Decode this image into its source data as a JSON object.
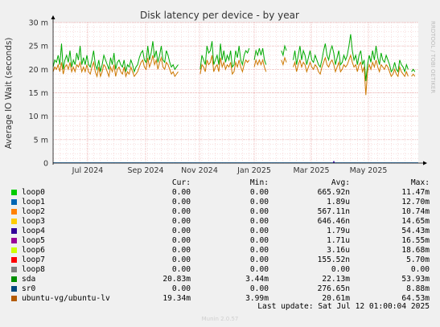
{
  "chart_data": {
    "type": "line",
    "title": "Disk latency per device - by year",
    "ylabel": "Average IO Wait (seconds)",
    "side_label": "RRDTOOL / TOBI OETIKER",
    "ylim": [
      0,
      30
    ],
    "y_ticks": [
      "0",
      "5 m",
      "10 m",
      "15 m",
      "20 m",
      "25 m",
      "30 m"
    ],
    "x_ticks": [
      "Jul 2024",
      "Sep 2024",
      "Nov 2024",
      "Jan 2025",
      "Mar 2025",
      "May 2025"
    ],
    "series": [
      {
        "name": "sda",
        "color": "#00aa00",
        "segments": [
          {
            "x": [
              0,
              0.05,
              0.1,
              0.15,
              0.2,
              0.25,
              0.3,
              0.35,
              0.4,
              0.45,
              0.5,
              0.55,
              0.6,
              0.65,
              0.7,
              0.75,
              0.8,
              0.85,
              0.9,
              0.95,
              1.0
            ],
            "y": [
              20.5,
              22,
              21.5,
              23,
              21,
              25.5,
              20,
              22,
              23,
              21.5,
              24,
              20.5,
              22,
              21,
              23.5,
              22,
              25,
              21,
              22.5,
              21,
              23
            ]
          },
          {
            "x": [
              1.0,
              1.05,
              1.1,
              1.15,
              1.2,
              1.25,
              1.3,
              1.35,
              1.4,
              1.45,
              1.5,
              1.55,
              1.6,
              1.65,
              1.7,
              1.75,
              1.8,
              1.85,
              1.9,
              1.95,
              2.0,
              2.05,
              2.1,
              2.15,
              2.2,
              2.25,
              2.3,
              2.35,
              2.4,
              2.45,
              2.5,
              2.55,
              2.6,
              2.65,
              2.7,
              2.75,
              2.8,
              2.85,
              2.9,
              2.95,
              3.0,
              3.05,
              3.1,
              3.15,
              3.2,
              3.25,
              3.3,
              3.35,
              3.4,
              3.45,
              3.5,
              3.55,
              3.6,
              3.65,
              3.7
            ],
            "y": [
              23,
              21,
              20.5,
              22,
              24,
              21,
              20,
              22,
              19.5,
              21,
              23,
              22,
              21,
              20,
              22.5,
              21,
              23.5,
              20,
              21.5,
              22,
              21,
              20.5,
              22,
              19.5,
              21,
              20.5,
              22,
              21,
              19.5,
              20.5,
              21,
              22.5,
              23.5,
              24,
              22,
              21.5,
              25,
              22,
              23.5,
              26,
              22.5,
              24,
              21.5,
              23,
              25,
              22,
              21.5,
              24,
              23,
              21.5,
              20.5,
              21,
              20,
              20.5,
              21
            ]
          },
          {
            "x": [
              4.35,
              4.4,
              4.45,
              4.5,
              4.55,
              4.6,
              4.65,
              4.7,
              4.75,
              4.8,
              4.85,
              4.9,
              4.95,
              5.0,
              5.05,
              5.1,
              5.15,
              5.2,
              5.25,
              5.3,
              5.35,
              5.4,
              5.45,
              5.5,
              5.55,
              5.6,
              5.65,
              5.7,
              5.75,
              5.8
            ],
            "y": [
              20,
              23,
              22,
              21,
              25,
              23.5,
              24,
              26,
              21,
              22,
              23,
              21,
              25.5,
              22,
              24,
              21.5,
              23,
              22,
              24,
              20.5,
              21,
              24,
              22.5,
              25,
              22,
              21,
              23,
              24,
              23.5,
              24.5
            ]
          },
          {
            "x": [
              5.95,
              6.0,
              6.05,
              6.1,
              6.15,
              6.2,
              6.25,
              6.3
            ],
            "y": [
              22,
              24,
              23,
              24.5,
              23,
              24.5,
              22,
              21
            ]
          },
          {
            "x": [
              6.75,
              6.8,
              6.85,
              6.9
            ],
            "y": [
              24,
              23,
              25,
              24
            ]
          },
          {
            "x": [
              7.1,
              7.15,
              7.2,
              7.25,
              7.3,
              7.35,
              7.4,
              7.45,
              7.5,
              7.55,
              7.6,
              7.65,
              7.7,
              7.75,
              7.8,
              7.85,
              7.9,
              7.95,
              8.0,
              8.05,
              8.1,
              8.15,
              8.2,
              8.25,
              8.3,
              8.35,
              8.4,
              8.45,
              8.5,
              8.55,
              8.6,
              8.65,
              8.7,
              8.75,
              8.8,
              8.85,
              8.9,
              8.95,
              9.0,
              9.05,
              9.1,
              9.15,
              9.2,
              9.25,
              9.3,
              9.35,
              9.4,
              9.45,
              9.5,
              9.55,
              9.6,
              9.65,
              9.7,
              9.75,
              9.8,
              9.85,
              9.9,
              9.95,
              10.0,
              10.05,
              10.1,
              10.15,
              10.2,
              10.25,
              10.3,
              10.35,
              10.4,
              10.45,
              10.5
            ],
            "y": [
              22,
              24,
              21,
              23,
              25,
              22,
              24,
              23,
              21,
              22.5,
              24,
              22,
              21.5,
              23,
              22,
              21,
              20.5,
              22,
              24,
              25.5,
              23,
              22,
              24,
              25,
              23.5,
              21,
              22.5,
              24,
              21,
              21.5,
              23,
              22,
              23,
              25,
              27.5,
              24,
              22,
              23,
              21,
              23,
              24,
              21,
              22,
              17.5,
              21,
              23,
              21.5,
              24,
              22,
              25,
              22.5,
              21,
              23.5,
              22,
              21.5,
              23,
              22,
              21,
              19.5,
              20,
              21.5,
              20,
              19.5,
              22,
              21,
              20.5,
              19.5,
              21,
              20
            ]
          },
          {
            "x": [
              10.6,
              10.65,
              10.7
            ],
            "y": [
              19.5,
              20,
              19.5
            ]
          }
        ]
      },
      {
        "name": "ubuntu-vg/ubuntu-lv",
        "color": "#cc7700",
        "segments": [
          {
            "x": [
              0,
              0.05,
              0.1,
              0.15,
              0.2,
              0.25,
              0.3,
              0.35,
              0.4,
              0.45,
              0.5,
              0.55,
              0.6,
              0.65,
              0.7,
              0.75,
              0.8,
              0.85,
              0.9,
              0.95,
              1.0
            ],
            "y": [
              19.5,
              20.5,
              20,
              21,
              19.5,
              21.5,
              19,
              20.5,
              21,
              20,
              21.5,
              19.5,
              20.5,
              19.5,
              21,
              20.5,
              21.5,
              19.5,
              20.5,
              19.5,
              21
            ]
          },
          {
            "x": [
              1.0,
              1.05,
              1.1,
              1.15,
              1.2,
              1.25,
              1.3,
              1.35,
              1.4,
              1.45,
              1.5,
              1.55,
              1.6,
              1.65,
              1.7,
              1.75,
              1.8,
              1.85,
              1.9,
              1.95,
              2.0,
              2.05,
              2.1,
              2.15,
              2.2,
              2.25,
              2.3,
              2.35,
              2.4,
              2.45,
              2.5,
              2.55,
              2.6,
              2.65,
              2.7,
              2.75,
              2.8,
              2.85,
              2.9,
              2.95,
              3.0,
              3.05,
              3.1,
              3.15,
              3.2,
              3.25,
              3.3,
              3.35,
              3.4,
              3.45,
              3.5,
              3.55,
              3.6,
              3.65,
              3.7
            ],
            "y": [
              21,
              19.5,
              19,
              20.5,
              21.5,
              19.5,
              18.5,
              20.5,
              18.5,
              19.5,
              21,
              20.5,
              19.5,
              18.5,
              20.5,
              19.5,
              21,
              18.5,
              20,
              20.5,
              19.5,
              19,
              20.5,
              18.5,
              19.5,
              19,
              20.5,
              19.5,
              18.5,
              19,
              19.5,
              20.5,
              21.5,
              22,
              20.5,
              20,
              22.5,
              20.5,
              21.5,
              23,
              21,
              22,
              20,
              21.5,
              22.5,
              20.5,
              20,
              21.5,
              21,
              20,
              19,
              19.5,
              18.5,
              19,
              19.5
            ]
          },
          {
            "x": [
              4.35,
              4.4,
              4.45,
              4.5,
              4.55,
              4.6,
              4.65,
              4.7,
              4.75,
              4.8,
              4.85,
              4.9,
              4.95,
              5.0,
              5.05,
              5.1,
              5.15,
              5.2,
              5.25,
              5.3,
              5.35,
              5.4,
              5.45,
              5.5,
              5.55,
              5.6,
              5.65,
              5.7,
              5.75,
              5.8
            ],
            "y": [
              19,
              21,
              20.5,
              19.5,
              22,
              21,
              21.5,
              23,
              19.5,
              20.5,
              21,
              19.5,
              22.5,
              20.5,
              21.5,
              20,
              21,
              20.5,
              21.5,
              19,
              19.5,
              21.5,
              20.5,
              22,
              20.5,
              19.5,
              21,
              22,
              21.5,
              22
            ]
          },
          {
            "x": [
              5.95,
              6.0,
              6.05,
              6.1,
              6.15,
              6.2,
              6.25,
              6.3
            ],
            "y": [
              20.5,
              22,
              21,
              22,
              21,
              22,
              20.5,
              19.5
            ]
          },
          {
            "x": [
              6.75,
              6.8,
              6.85,
              6.9
            ],
            "y": [
              22,
              21,
              22.5,
              21.5
            ]
          },
          {
            "x": [
              7.1,
              7.15,
              7.2,
              7.25,
              7.3,
              7.35,
              7.4,
              7.45,
              7.5,
              7.55,
              7.6,
              7.65,
              7.7,
              7.75,
              7.8,
              7.85,
              7.9,
              7.95,
              8.0,
              8.05,
              8.1,
              8.15,
              8.2,
              8.25,
              8.3,
              8.35,
              8.4,
              8.45,
              8.5,
              8.55,
              8.6,
              8.65,
              8.7,
              8.75,
              8.8,
              8.85,
              8.9,
              8.95,
              9.0,
              9.05,
              9.1,
              9.15,
              9.2,
              9.25,
              9.3,
              9.35,
              9.4,
              9.45,
              9.5,
              9.55,
              9.6,
              9.65,
              9.7,
              9.75,
              9.8,
              9.85,
              9.9,
              9.95,
              10.0,
              10.05,
              10.1,
              10.15,
              10.2,
              10.25,
              10.3,
              10.35,
              10.4,
              10.45,
              10.5
            ],
            "y": [
              20.5,
              21.5,
              19.5,
              21,
              22,
              20.5,
              21.5,
              21,
              19.5,
              20.5,
              21.5,
              20.5,
              20,
              21,
              20.5,
              19.5,
              19,
              20.5,
              21.5,
              22.5,
              21,
              20.5,
              21.5,
              22,
              21,
              19.5,
              20.5,
              21.5,
              19.5,
              20,
              21,
              20.5,
              21,
              22,
              23,
              21.5,
              20.5,
              21,
              19.5,
              21,
              21.5,
              19.5,
              20.5,
              14.5,
              19.5,
              21,
              20,
              21.5,
              20.5,
              22,
              20.5,
              19.5,
              21,
              20.5,
              20,
              21,
              20.5,
              19.5,
              18.5,
              19,
              20,
              19,
              18.5,
              20.5,
              19.5,
              19,
              18.5,
              19.5,
              18.5
            ]
          },
          {
            "x": [
              10.6,
              10.65,
              10.7
            ],
            "y": [
              18.5,
              19,
              18.5
            ]
          }
        ]
      }
    ],
    "x_range": [
      0,
      10.8
    ]
  },
  "legend": {
    "headers": {
      "cur": "Cur:",
      "min": "Min:",
      "avg": "Avg:",
      "max": "Max:"
    },
    "rows": [
      {
        "name": "loop0",
        "color": "#00cc00",
        "cur": "0.00",
        "min": "0.00",
        "avg": "665.92n",
        "max": "11.47m"
      },
      {
        "name": "loop1",
        "color": "#0066b3",
        "cur": "0.00",
        "min": "0.00",
        "avg": "1.89u",
        "max": "12.70m"
      },
      {
        "name": "loop2",
        "color": "#ff8000",
        "cur": "0.00",
        "min": "0.00",
        "avg": "567.11n",
        "max": "10.74m"
      },
      {
        "name": "loop3",
        "color": "#ffcc00",
        "cur": "0.00",
        "min": "0.00",
        "avg": "646.46n",
        "max": "14.65m"
      },
      {
        "name": "loop4",
        "color": "#330099",
        "cur": "0.00",
        "min": "0.00",
        "avg": "1.79u",
        "max": "54.43m"
      },
      {
        "name": "loop5",
        "color": "#990099",
        "cur": "0.00",
        "min": "0.00",
        "avg": "1.71u",
        "max": "16.55m"
      },
      {
        "name": "loop6",
        "color": "#ccff00",
        "cur": "0.00",
        "min": "0.00",
        "avg": "3.16u",
        "max": "18.68m"
      },
      {
        "name": "loop7",
        "color": "#ff0000",
        "cur": "0.00",
        "min": "0.00",
        "avg": "155.52n",
        "max": "5.70m"
      },
      {
        "name": "loop8",
        "color": "#808080",
        "cur": "0.00",
        "min": "0.00",
        "avg": "0.00",
        "max": "0.00"
      },
      {
        "name": "sda",
        "color": "#008f00",
        "cur": "20.83m",
        "min": "3.44m",
        "avg": "22.13m",
        "max": "53.93m"
      },
      {
        "name": "sr0",
        "color": "#00487d",
        "cur": "0.00",
        "min": "0.00",
        "avg": "276.65n",
        "max": "8.88m"
      },
      {
        "name": "ubuntu-vg/ubuntu-lv",
        "color": "#b35a00",
        "cur": "19.34m",
        "min": "3.99m",
        "avg": "20.61m",
        "max": "64.53m"
      }
    ]
  },
  "footer": {
    "last_update": "Last update: Sat Jul 12 01:00:04 2025",
    "munin": "Munin 2.0.57"
  }
}
